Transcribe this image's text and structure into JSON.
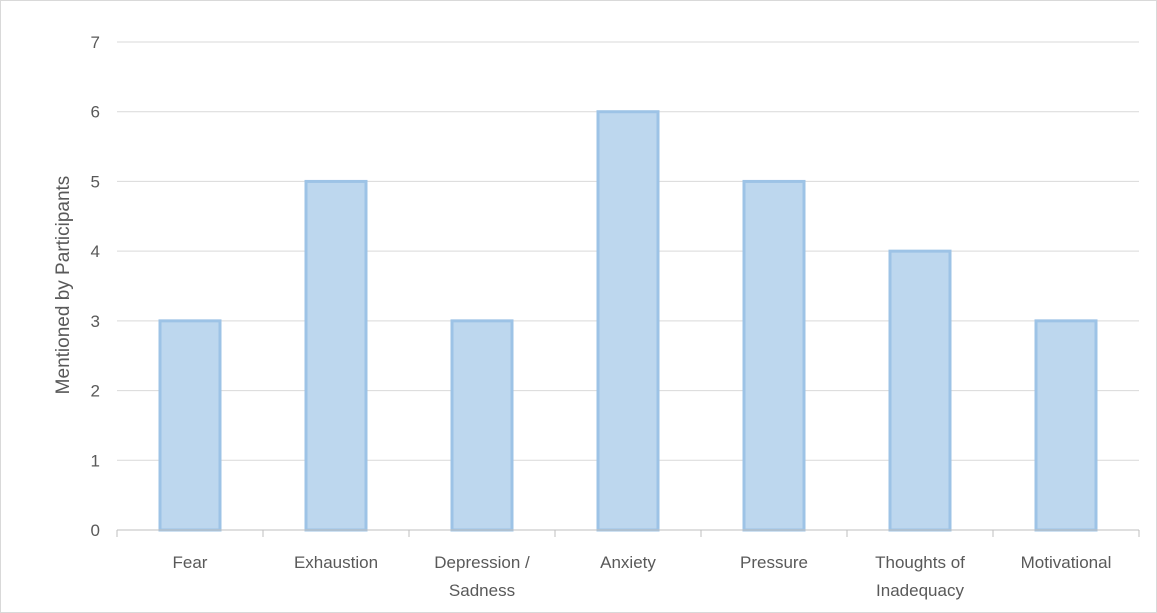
{
  "chart_data": {
    "type": "bar",
    "categories": [
      [
        "Fear"
      ],
      [
        "Exhaustion"
      ],
      [
        "Depression /",
        "Sadness"
      ],
      [
        "Anxiety"
      ],
      [
        "Pressure"
      ],
      [
        "Thoughts of",
        "Inadequacy"
      ],
      [
        "Motivational"
      ]
    ],
    "values": [
      3,
      5,
      3,
      6,
      5,
      4,
      3
    ],
    "title": "",
    "xlabel": "",
    "ylabel": "Mentioned by Participants",
    "ylim": [
      0,
      7
    ],
    "yticks": [
      "0",
      "1",
      "2",
      "3",
      "4",
      "5",
      "6",
      "7"
    ],
    "grid": true,
    "legend": "none",
    "colors": {
      "bar_fill": "#bdd7ee",
      "bar_stroke": "#9dc3e6",
      "grid": "#d9d9d9",
      "axis": "#bfbfbf",
      "text": "#595959"
    }
  }
}
